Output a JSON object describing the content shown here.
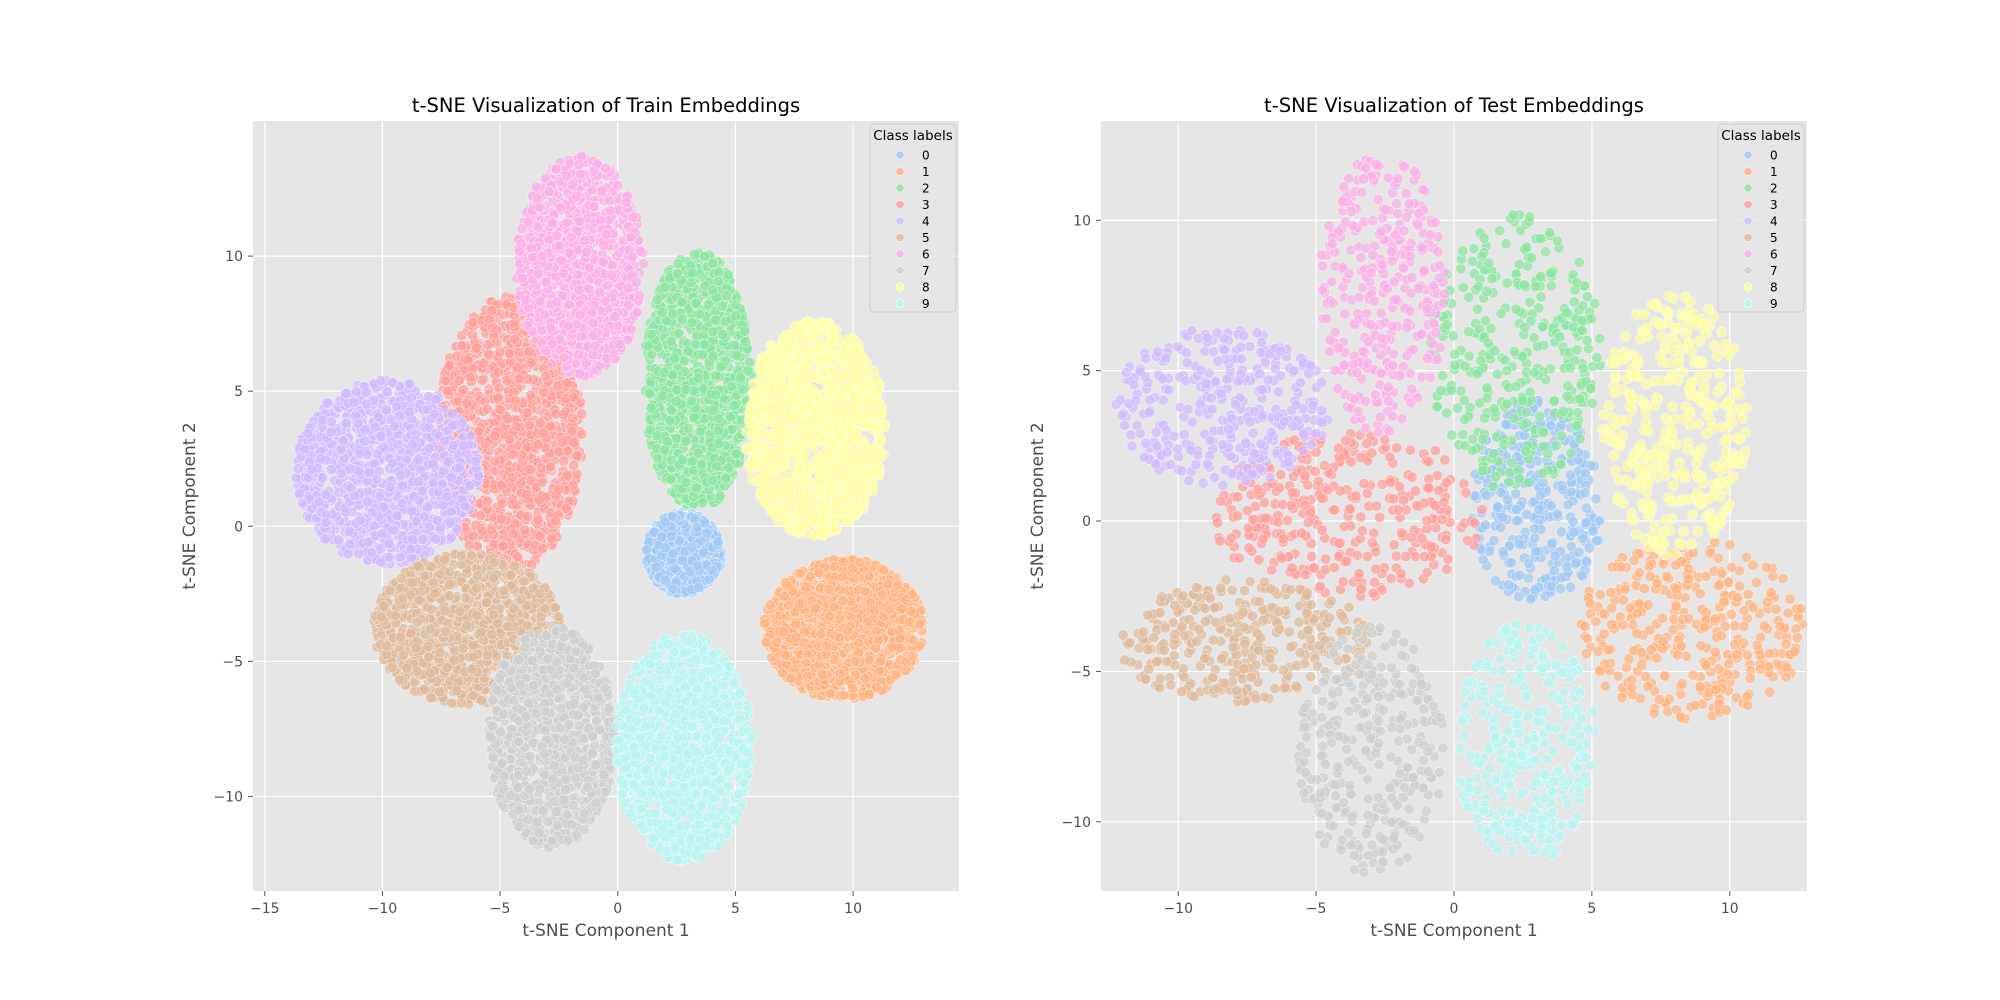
{
  "chart_data": [
    {
      "type": "scatter",
      "title": "t-SNE Visualization of Train Embeddings",
      "xlabel": "t-SNE Component 1",
      "ylabel": "t-SNE Component 2",
      "xlim": [
        -15.5,
        14.5
      ],
      "ylim": [
        -13.5,
        15
      ],
      "xticks": [
        -15,
        -10,
        -5,
        0,
        5,
        10
      ],
      "yticks": [
        -10,
        -5,
        0,
        5,
        10
      ],
      "grid": true,
      "legend": {
        "title": "Class labels",
        "placement": "top-right"
      },
      "series": [
        {
          "name": "0",
          "color": "#a1c9f4",
          "center": [
            2.8,
            -1.0
          ],
          "spread": [
            3.2,
            3.0
          ],
          "density": "high"
        },
        {
          "name": "1",
          "color": "#ffb482",
          "center": [
            9.6,
            -3.8
          ],
          "spread": [
            6.8,
            5.2
          ],
          "density": "high"
        },
        {
          "name": "2",
          "color": "#8de5a1",
          "center": [
            3.4,
            5.4
          ],
          "spread": [
            4.6,
            9.6
          ],
          "density": "high"
        },
        {
          "name": "3",
          "color": "#ff9f9b",
          "center": [
            -4.6,
            3.4
          ],
          "spread": [
            6.2,
            10.2
          ],
          "density": "high"
        },
        {
          "name": "4",
          "color": "#d0bbff",
          "center": [
            -9.8,
            2.0
          ],
          "spread": [
            7.8,
            6.8
          ],
          "density": "high"
        },
        {
          "name": "5",
          "color": "#debb9b",
          "center": [
            -6.4,
            -3.8
          ],
          "spread": [
            8.0,
            5.6
          ],
          "density": "high"
        },
        {
          "name": "6",
          "color": "#fab0e4",
          "center": [
            -1.6,
            9.6
          ],
          "spread": [
            5.4,
            8.2
          ],
          "density": "high"
        },
        {
          "name": "7",
          "color": "#cfcfcf",
          "center": [
            -2.8,
            -7.8
          ],
          "spread": [
            5.4,
            8.2
          ],
          "density": "high"
        },
        {
          "name": "8",
          "color": "#fffea3",
          "center": [
            8.4,
            3.6
          ],
          "spread": [
            6.0,
            8.0
          ],
          "density": "high"
        },
        {
          "name": "9",
          "color": "#b9f2f0",
          "center": [
            2.8,
            -8.2
          ],
          "spread": [
            5.8,
            8.4
          ],
          "density": "high"
        }
      ]
    },
    {
      "type": "scatter",
      "title": "t-SNE Visualization of Test Embeddings",
      "xlabel": "t-SNE Component 1",
      "ylabel": "t-SNE Component 2",
      "xlim": [
        -12.8,
        12.8
      ],
      "ylim": [
        -12.3,
        13.3
      ],
      "xticks": [
        -10,
        -5,
        0,
        5,
        10
      ],
      "yticks": [
        -10,
        -5,
        0,
        5,
        10
      ],
      "grid": true,
      "legend": {
        "title": "Class labels",
        "placement": "top-right"
      },
      "series": [
        {
          "name": "0",
          "color": "#a1c9f4",
          "center": [
            3.0,
            0.6
          ],
          "spread": [
            4.2,
            6.0
          ],
          "density": "low"
        },
        {
          "name": "1",
          "color": "#ffb482",
          "center": [
            8.6,
            -3.6
          ],
          "spread": [
            7.2,
            5.2
          ],
          "density": "low"
        },
        {
          "name": "2",
          "color": "#8de5a1",
          "center": [
            2.2,
            5.6
          ],
          "spread": [
            5.4,
            8.0
          ],
          "density": "low"
        },
        {
          "name": "3",
          "color": "#ff9f9b",
          "center": [
            -3.8,
            0.2
          ],
          "spread": [
            8.6,
            4.8
          ],
          "density": "low"
        },
        {
          "name": "4",
          "color": "#d0bbff",
          "center": [
            -8.4,
            3.8
          ],
          "spread": [
            6.8,
            4.6
          ],
          "density": "low"
        },
        {
          "name": "5",
          "color": "#debb9b",
          "center": [
            -7.6,
            -4.0
          ],
          "spread": [
            8.0,
            3.6
          ],
          "density": "low"
        },
        {
          "name": "6",
          "color": "#fab0e4",
          "center": [
            -2.6,
            7.6
          ],
          "spread": [
            4.0,
            8.2
          ],
          "density": "low"
        },
        {
          "name": "7",
          "color": "#cfcfcf",
          "center": [
            -3.0,
            -7.6
          ],
          "spread": [
            4.6,
            7.2
          ],
          "density": "low"
        },
        {
          "name": "8",
          "color": "#fffea3",
          "center": [
            8.0,
            3.2
          ],
          "spread": [
            4.6,
            7.6
          ],
          "density": "low"
        },
        {
          "name": "9",
          "color": "#b9f2f0",
          "center": [
            2.6,
            -7.4
          ],
          "spread": [
            4.4,
            7.0
          ],
          "density": "low"
        }
      ]
    }
  ]
}
